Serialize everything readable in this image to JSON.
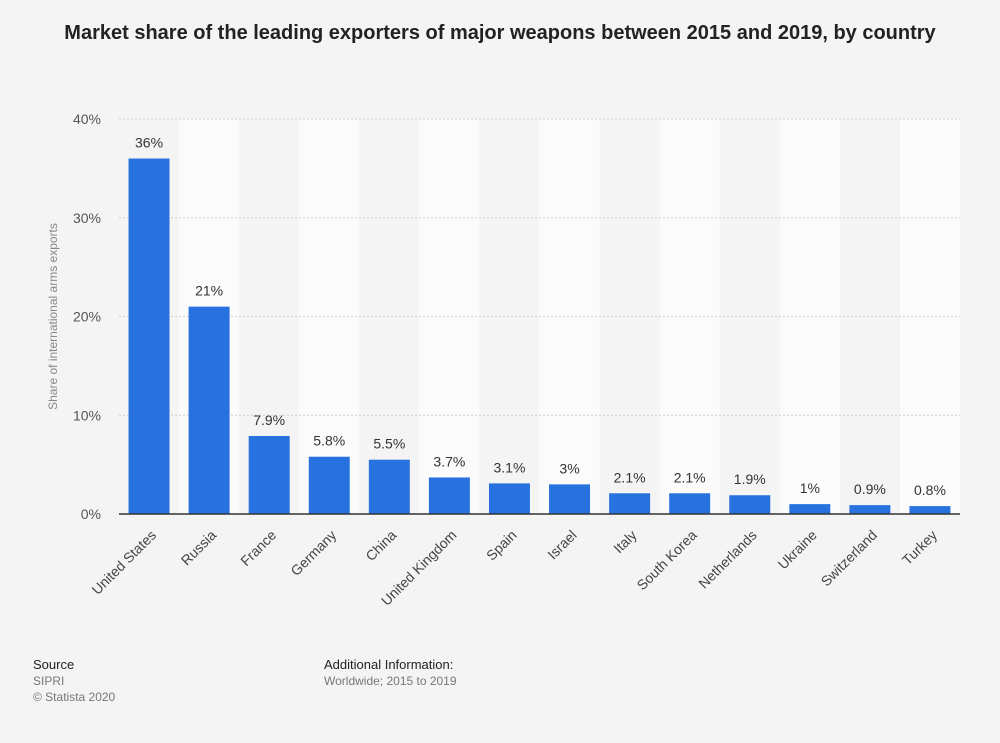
{
  "title": "Market share of the leading exporters of major weapons between 2015 and 2019, by country",
  "chart_data": {
    "type": "bar",
    "title": "Market share of the leading exporters of major weapons between 2015 and 2019, by country",
    "xlabel": "",
    "ylabel": "Share of international arms exports",
    "categories": [
      "United States",
      "Russia",
      "France",
      "Germany",
      "China",
      "United Kingdom",
      "Spain",
      "Israel",
      "Italy",
      "South Korea",
      "Netherlands",
      "Ukraine",
      "Switzerland",
      "Turkey"
    ],
    "values": [
      36,
      21,
      7.9,
      5.8,
      5.5,
      3.7,
      3.1,
      3,
      2.1,
      2.1,
      1.9,
      1,
      0.9,
      0.8
    ],
    "value_labels": [
      "36%",
      "21%",
      "7.9%",
      "5.8%",
      "5.5%",
      "3.7%",
      "3.1%",
      "3%",
      "2.1%",
      "2.1%",
      "1.9%",
      "1%",
      "0.9%",
      "0.8%"
    ],
    "ylim": [
      0,
      40
    ],
    "yticks": [
      0,
      10,
      20,
      30,
      40
    ],
    "ytick_labels": [
      "0%",
      "10%",
      "20%",
      "30%",
      "40%"
    ],
    "grid": true,
    "bar_color": "#2872df"
  },
  "footer": {
    "source_heading": "Source",
    "source_name": "SIPRI",
    "copyright": "© Statista 2020",
    "info_heading": "Additional Information:",
    "info_text": "Worldwide; 2015 to 2019"
  }
}
